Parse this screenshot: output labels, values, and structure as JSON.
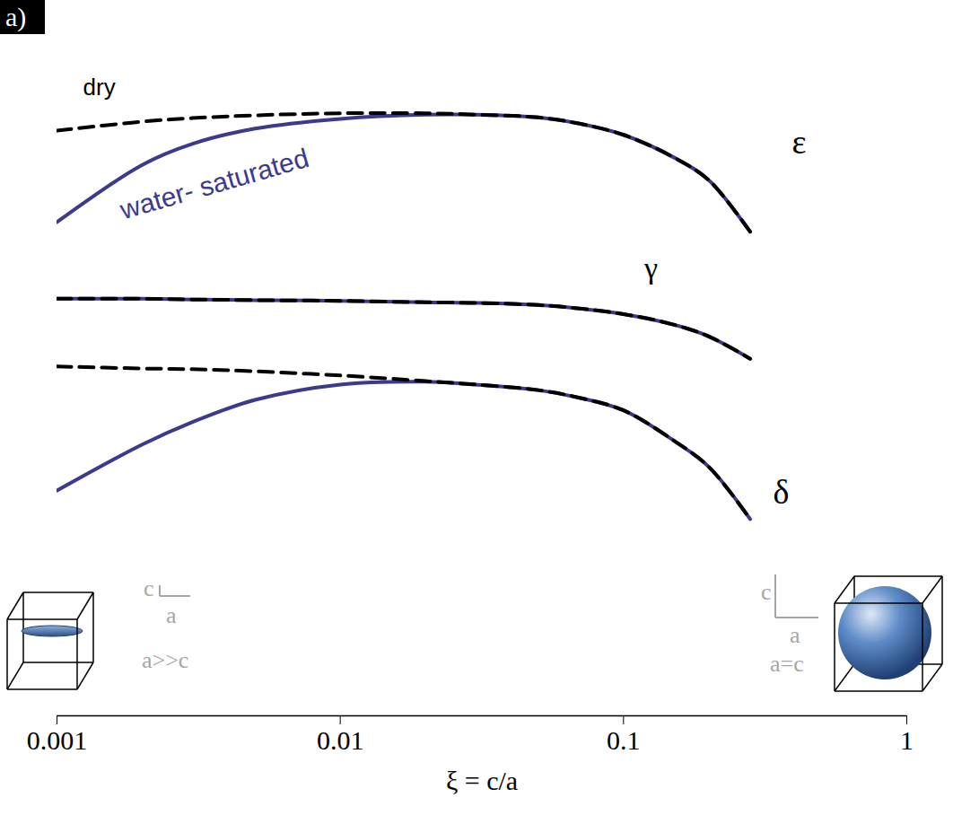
{
  "chart_data": {
    "type": "line",
    "panel": "a)",
    "xlabel": "ξ = c/a",
    "log": "x",
    "grid": false,
    "tick_labels": "x",
    "xlim": [
      0.001,
      1
    ],
    "xticks": [
      0.001,
      0.01,
      0.1,
      1
    ],
    "ylim": [
      0,
      100
    ],
    "x": [
      0.001,
      0.002,
      0.003,
      0.005,
      0.01,
      0.02,
      0.03,
      0.05,
      0.07,
      0.1,
      0.15,
      0.2,
      0.28
    ],
    "series": [
      {
        "name": "water- saturated",
        "curve": "ε",
        "color": "#3c3a8e",
        "line_style": "solid",
        "values": [
          70.8,
          79.0,
          82.0,
          84.2,
          85.6,
          86.2,
          86.2,
          85.8,
          84.9,
          83.3,
          80.1,
          76.8,
          69.4
        ]
      },
      {
        "name": "dry",
        "curve": "ε",
        "color": "#000000",
        "line_style": "dashed",
        "values": [
          83.9,
          85.2,
          85.7,
          86.1,
          86.4,
          86.4,
          86.2,
          85.8,
          84.9,
          83.3,
          80.1,
          76.8,
          69.4
        ]
      },
      {
        "name": "water- saturated",
        "curve": "γ",
        "color": "#3c3a8e",
        "line_style": "solid",
        "values": [
          59.8,
          59.8,
          59.7,
          59.6,
          59.5,
          59.3,
          59.2,
          58.9,
          58.4,
          57.6,
          56.1,
          54.4,
          51.2
        ]
      },
      {
        "name": "dry",
        "curve": "γ",
        "color": "#000000",
        "line_style": "dashed",
        "values": [
          59.8,
          59.8,
          59.7,
          59.6,
          59.5,
          59.3,
          59.2,
          58.9,
          58.4,
          57.6,
          56.1,
          54.4,
          51.2
        ]
      },
      {
        "name": "water- saturated",
        "curve": "δ",
        "color": "#3c3a8e",
        "line_style": "solid",
        "values": [
          32.3,
          38.9,
          42.1,
          45.3,
          47.5,
          47.9,
          47.5,
          46.7,
          45.6,
          43.8,
          39.5,
          35.7,
          28.2
        ]
      },
      {
        "name": "dry",
        "curve": "δ",
        "color": "#000000",
        "line_style": "dashed",
        "values": [
          50.1,
          49.8,
          49.7,
          49.4,
          48.8,
          48.0,
          47.5,
          46.7,
          45.6,
          43.8,
          39.5,
          35.7,
          28.2
        ]
      }
    ],
    "annotations": [
      {
        "text": "ε",
        "x": 0.417,
        "y": 82.2
      },
      {
        "text": "γ",
        "x": 0.125,
        "y": 64.2
      },
      {
        "text": "δ",
        "x": 0.36,
        "y": 32.0
      },
      {
        "text": "dry",
        "x": 0.00141,
        "y": 90.1
      },
      {
        "text": "water- saturated",
        "x": 0.0036,
        "y": 76.2,
        "color": "#3c3a8e"
      }
    ],
    "insets": [
      {
        "labels": [
          "c",
          "a",
          "a>>c"
        ]
      },
      {
        "labels": [
          "c",
          "a",
          "a=c"
        ]
      }
    ]
  }
}
